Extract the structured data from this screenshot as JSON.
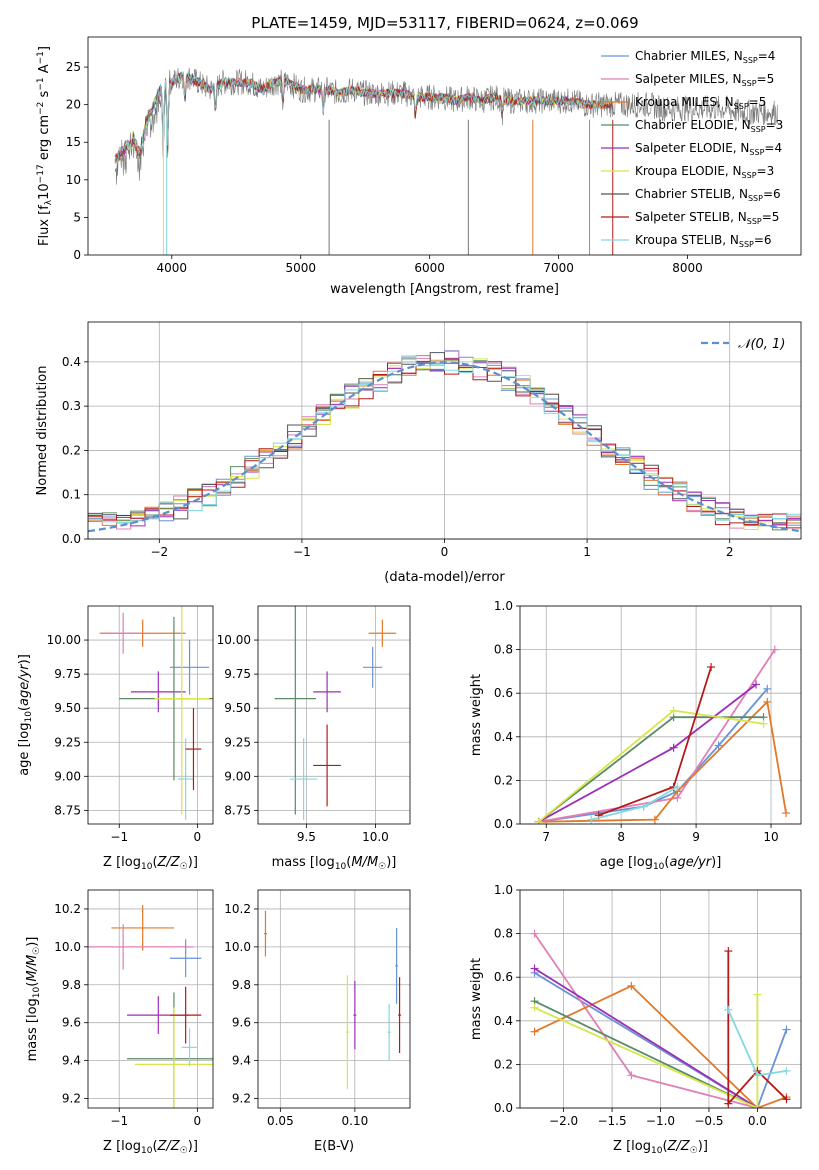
{
  "title": "PLATE=1459, MJD=53117, FIBERID=0624, z=0.069",
  "colors": {
    "dashed": "#5b8fd0"
  },
  "legend": [
    {
      "label": "Chabrier MILES, N",
      "sub": "SSP",
      "eq": "=4",
      "color": "#6a93d6"
    },
    {
      "label": "Salpeter MILES, N",
      "sub": "SSP",
      "eq": "=5",
      "color": "#e07fb8"
    },
    {
      "label": "Kroupa MILES, N",
      "sub": "SSP",
      "eq": "=5",
      "color": "#e2792a"
    },
    {
      "label": "Chabrier ELODIE, N",
      "sub": "SSP",
      "eq": "=3",
      "color": "#5a8a66"
    },
    {
      "label": "Salpeter ELODIE, N",
      "sub": "SSP",
      "eq": "=4",
      "color": "#9c2fb5"
    },
    {
      "label": "Kroupa ELODIE, N",
      "sub": "SSP",
      "eq": "=3",
      "color": "#d7e64a"
    },
    {
      "label": "Chabrier STELIB, N",
      "sub": "SSP",
      "eq": "=6",
      "color": "#555555"
    },
    {
      "label": "Salpeter STELIB, N",
      "sub": "SSP",
      "eq": "=5",
      "color": "#b51a1a"
    },
    {
      "label": "Kroupa STELIB, N",
      "sub": "SSP",
      "eq": "=6",
      "color": "#84d8e0"
    }
  ],
  "chart_data": [
    {
      "id": "spectrum",
      "type": "line",
      "title": "PLATE=1459, MJD=53117, FIBERID=0624, z=0.069",
      "xlabel": "wavelength [Angstrom, rest frame]",
      "ylabel": "Flux [f_λ 10^-17 erg cm^-2 s^-1 A^-1]",
      "xlim": [
        3350,
        8880
      ],
      "ylim": [
        0,
        29
      ],
      "xticks": [
        4000,
        5000,
        6000,
        7000,
        8000
      ],
      "yticks": [
        0,
        5,
        10,
        15,
        20,
        25
      ],
      "grid": false,
      "legend_position": "top-right",
      "series": [
        {
          "name": "data",
          "x": [
            3560,
            3600,
            3650,
            3700,
            3750,
            3800,
            3850,
            3900,
            3950,
            4000,
            4100,
            4200,
            4300,
            4400,
            4500,
            4600,
            4700,
            4800,
            4900,
            5000,
            5100,
            5200,
            5300,
            5400,
            5500,
            5600,
            5700,
            5800,
            5900,
            6000,
            6100,
            6200,
            6300,
            6400,
            6500,
            6600,
            6700,
            6800,
            6900,
            7000,
            7100,
            7200,
            7300,
            7400,
            7500,
            7600,
            7700,
            7800,
            7900,
            8000,
            8100,
            8200,
            8300,
            8400,
            8500,
            8600,
            8700
          ],
          "y": [
            13,
            14,
            15,
            16,
            14,
            18,
            20,
            22,
            23,
            23,
            24,
            23,
            22,
            23,
            23,
            23,
            22,
            23,
            23,
            22,
            22,
            22,
            21.5,
            22,
            21.5,
            21.5,
            21.5,
            21.5,
            21,
            21,
            21,
            20.5,
            21,
            20.5,
            21,
            20.5,
            20.5,
            20.5,
            20.5,
            20.5,
            20.5,
            20,
            20,
            20,
            20,
            20,
            20,
            19.5,
            19.5,
            19.5,
            19.5,
            19.5,
            19.5,
            19,
            19,
            19,
            19
          ]
        },
        {
          "name": "model",
          "x": [
            3560,
            3600,
            3650,
            3700,
            3750,
            3800,
            3850,
            3900,
            3950,
            4000,
            4100,
            4200,
            4300,
            4400,
            4500,
            4600,
            4700,
            4800,
            4900,
            5000,
            5100,
            5200,
            5300,
            5400,
            5500,
            5600,
            5700,
            5800,
            5900,
            6000,
            6100,
            6200,
            6300,
            6400,
            6500,
            6600,
            6700,
            6800,
            6900,
            7000,
            7100,
            7200,
            7300,
            7400
          ],
          "y": [
            13,
            14,
            15,
            16,
            14,
            18,
            20,
            22,
            23,
            23,
            24,
            23,
            22,
            23,
            23,
            23,
            22,
            23,
            23,
            22,
            22,
            22,
            21.5,
            22,
            21.5,
            21.5,
            21.5,
            21.5,
            21,
            21,
            21,
            20.5,
            21,
            20.5,
            21,
            20.5,
            20.5,
            20.5,
            20.5,
            20.5,
            20.5,
            20,
            20,
            20
          ]
        }
      ]
    },
    {
      "id": "residuals",
      "type": "line",
      "xlabel": "(data-model)/error",
      "ylabel": "Normed distribution",
      "xlim": [
        -2.5,
        2.5
      ],
      "ylim": [
        0,
        0.49
      ],
      "xticks": [
        -2,
        -1,
        0,
        1,
        2
      ],
      "yticks": [
        0.0,
        0.1,
        0.2,
        0.3,
        0.4
      ],
      "grid": true,
      "legend_position": "top-right",
      "legend": "𝒩(0, 1)",
      "series": [
        {
          "name": "𝒩(0, 1)",
          "x": [
            -2.5,
            -2.0,
            -1.5,
            -1.0,
            -0.5,
            0.0,
            0.5,
            1.0,
            1.5,
            2.0,
            2.5
          ],
          "y": [
            0.018,
            0.054,
            0.13,
            0.242,
            0.352,
            0.399,
            0.352,
            0.242,
            0.13,
            0.054,
            0.018
          ]
        }
      ]
    },
    {
      "id": "age_vs_Z",
      "type": "scatter",
      "xlabel": "Z [log10(Z/Z☉)]",
      "ylabel": "age [log10(age/yr)]",
      "xlim": [
        -1.4,
        0.2
      ],
      "ylim": [
        8.65,
        10.25
      ],
      "xticks": [
        -1,
        0
      ],
      "yticks": [
        8.75,
        9.0,
        9.25,
        9.5,
        9.75,
        10.0
      ],
      "grid": true,
      "points": [
        {
          "x": -0.7,
          "y": 10.05,
          "color": "#e2792a"
        },
        {
          "x": -0.95,
          "y": 10.05,
          "color": "#e07fb8"
        },
        {
          "x": -0.1,
          "y": 9.8,
          "color": "#6a93d6"
        },
        {
          "x": -0.5,
          "y": 9.62,
          "color": "#9c2fb5"
        },
        {
          "x": -0.3,
          "y": 9.57,
          "color": "#5a8a66"
        },
        {
          "x": -0.2,
          "y": 9.57,
          "color": "#d7e64a"
        },
        {
          "x": -0.15,
          "y": 8.98,
          "color": "#84d8e0"
        },
        {
          "x": -0.05,
          "y": 9.2,
          "color": "#b51a1a"
        }
      ]
    },
    {
      "id": "age_vs_mass",
      "type": "scatter",
      "xlabel": "mass [log10(M/M☉)]",
      "ylabel": "",
      "xlim": [
        9.15,
        10.25
      ],
      "ylim": [
        8.65,
        10.25
      ],
      "xticks": [
        9.5,
        10.0
      ],
      "yticks": [
        8.75,
        9.0,
        9.25,
        9.5,
        9.75,
        10.0
      ],
      "grid": true,
      "points": [
        {
          "x": 10.05,
          "y": 10.05,
          "color": "#e2792a"
        },
        {
          "x": 9.98,
          "y": 9.8,
          "color": "#6a93d6"
        },
        {
          "x": 9.65,
          "y": 9.62,
          "color": "#9c2fb5"
        },
        {
          "x": 9.42,
          "y": 9.57,
          "color": "#5a8a66"
        },
        {
          "x": 9.48,
          "y": 8.98,
          "color": "#84d8e0"
        },
        {
          "x": 9.65,
          "y": 9.08,
          "color": "#b51a1a"
        }
      ]
    },
    {
      "id": "massweight_vs_age",
      "type": "line",
      "xlabel": "age [log10(age/yr)]",
      "ylabel": "mass weight",
      "xlim": [
        6.65,
        10.4
      ],
      "ylim": [
        0,
        1
      ],
      "xticks": [
        7,
        8,
        9,
        10
      ],
      "yticks": [
        0.0,
        0.2,
        0.4,
        0.6,
        0.8,
        1.0
      ],
      "grid": true,
      "series": [
        {
          "name": "Chabrier MILES",
          "x": [
            6.9,
            8.3,
            8.75,
            9.3,
            9.95
          ],
          "y": [
            0.01,
            0.08,
            0.15,
            0.36,
            0.62
          ],
          "color": "#6a93d6"
        },
        {
          "name": "Salpeter MILES",
          "x": [
            6.9,
            8.75,
            10.05
          ],
          "y": [
            0.01,
            0.12,
            0.8
          ],
          "color": "#e07fb8"
        },
        {
          "name": "Kroupa MILES",
          "x": [
            6.9,
            8.45,
            8.75,
            9.95,
            10.2
          ],
          "y": [
            0.01,
            0.02,
            0.15,
            0.56,
            0.05
          ],
          "color": "#e2792a"
        },
        {
          "name": "Chabrier ELODIE",
          "x": [
            6.9,
            8.7,
            9.9
          ],
          "y": [
            0.01,
            0.49,
            0.49
          ],
          "color": "#5a8a66"
        },
        {
          "name": "Salpeter ELODIE",
          "x": [
            6.9,
            8.7,
            9.8
          ],
          "y": [
            0.01,
            0.35,
            0.64
          ],
          "color": "#9c2fb5"
        },
        {
          "name": "Kroupa ELODIE",
          "x": [
            6.9,
            8.7,
            9.9
          ],
          "y": [
            0.01,
            0.52,
            0.46
          ],
          "color": "#d7e64a"
        },
        {
          "name": "Salpeter STELIB",
          "x": [
            7.7,
            8.7,
            9.2
          ],
          "y": [
            0.04,
            0.17,
            0.72
          ],
          "color": "#b51a1a"
        },
        {
          "name": "Kroupa STELIB",
          "x": [
            7.6,
            8.3,
            8.75
          ],
          "y": [
            0.02,
            0.08,
            0.17
          ],
          "color": "#84d8e0"
        }
      ]
    },
    {
      "id": "mass_vs_Z",
      "type": "scatter",
      "xlabel": "Z [log10(Z/Z☉)]",
      "ylabel": "mass [log10(M/M☉)]",
      "xlim": [
        -1.4,
        0.2
      ],
      "ylim": [
        9.15,
        10.3
      ],
      "xticks": [
        -1,
        0
      ],
      "yticks": [
        9.2,
        9.4,
        9.6,
        9.8,
        10.0,
        10.2
      ],
      "grid": true,
      "points": [
        {
          "x": -0.7,
          "y": 10.1,
          "color": "#e2792a"
        },
        {
          "x": -0.95,
          "y": 10.0,
          "color": "#e07fb8"
        },
        {
          "x": -0.15,
          "y": 9.94,
          "color": "#6a93d6"
        },
        {
          "x": -0.5,
          "y": 9.64,
          "color": "#9c2fb5"
        },
        {
          "x": -0.3,
          "y": 9.41,
          "color": "#5a8a66"
        },
        {
          "x": -0.3,
          "y": 9.38,
          "color": "#d7e64a"
        },
        {
          "x": -0.1,
          "y": 9.47,
          "color": "#84d8e0"
        },
        {
          "x": -0.15,
          "y": 9.64,
          "color": "#b51a1a"
        }
      ]
    },
    {
      "id": "mass_vs_EBV",
      "type": "scatter",
      "xlabel": "E(B-V)",
      "ylabel": "",
      "xlim": [
        0.035,
        0.137
      ],
      "ylim": [
        9.15,
        10.3
      ],
      "xticks": [
        0.05,
        0.1
      ],
      "yticks": [
        9.2,
        9.4,
        9.6,
        9.8,
        10.0,
        10.2
      ],
      "grid": true,
      "points": [
        {
          "x": 0.04,
          "y": 10.07,
          "color": "#e2792a"
        },
        {
          "x": 0.095,
          "y": 9.55,
          "color": "#d7e64a"
        },
        {
          "x": 0.1,
          "y": 9.64,
          "color": "#9c2fb5"
        },
        {
          "x": 0.123,
          "y": 9.55,
          "color": "#84d8e0"
        },
        {
          "x": 0.128,
          "y": 9.9,
          "color": "#6a93d6"
        },
        {
          "x": 0.13,
          "y": 9.64,
          "color": "#b51a1a"
        }
      ]
    },
    {
      "id": "massweight_vs_Z",
      "type": "line",
      "xlabel": "Z [log10(Z/Z☉)]",
      "ylabel": "mass weight",
      "xlim": [
        -2.45,
        0.45
      ],
      "ylim": [
        0,
        1
      ],
      "xticks": [
        -2.0,
        -1.5,
        -1.0,
        -0.5,
        0.0
      ],
      "yticks": [
        0.0,
        0.2,
        0.4,
        0.6,
        0.8,
        1.0
      ],
      "grid": true,
      "series": [
        {
          "name": "Chabrier MILES",
          "x": [
            -2.3,
            0.0,
            0.3
          ],
          "y": [
            0.62,
            0.0,
            0.36
          ],
          "color": "#6a93d6"
        },
        {
          "name": "Salpeter MILES",
          "x": [
            -2.3,
            -1.3,
            0.0
          ],
          "y": [
            0.8,
            0.15,
            0.0
          ],
          "color": "#e07fb8"
        },
        {
          "name": "Kroupa MILES",
          "x": [
            -2.3,
            -1.3,
            0.0,
            0.3
          ],
          "y": [
            0.35,
            0.56,
            0.0,
            0.05
          ],
          "color": "#e2792a"
        },
        {
          "name": "Chabrier ELODIE",
          "x": [
            -2.3,
            0.0
          ],
          "y": [
            0.49,
            0.0
          ],
          "color": "#5a8a66"
        },
        {
          "name": "Salpeter ELODIE",
          "x": [
            -2.3,
            0.0
          ],
          "y": [
            0.64,
            0.0
          ],
          "color": "#9c2fb5"
        },
        {
          "name": "Kroupa ELODIE",
          "x": [
            -2.3,
            0.0,
            0.0
          ],
          "y": [
            0.46,
            0.0,
            0.52
          ],
          "color": "#d7e64a"
        },
        {
          "name": "Salpeter STELIB",
          "x": [
            -0.3,
            -0.3,
            0.0,
            0.3
          ],
          "y": [
            0.72,
            0.02,
            0.17,
            0.04
          ],
          "color": "#b51a1a"
        },
        {
          "name": "Kroupa STELIB",
          "x": [
            -0.3,
            0.0,
            0.3
          ],
          "y": [
            0.45,
            0.15,
            0.17
          ],
          "color": "#84d8e0"
        }
      ]
    }
  ]
}
